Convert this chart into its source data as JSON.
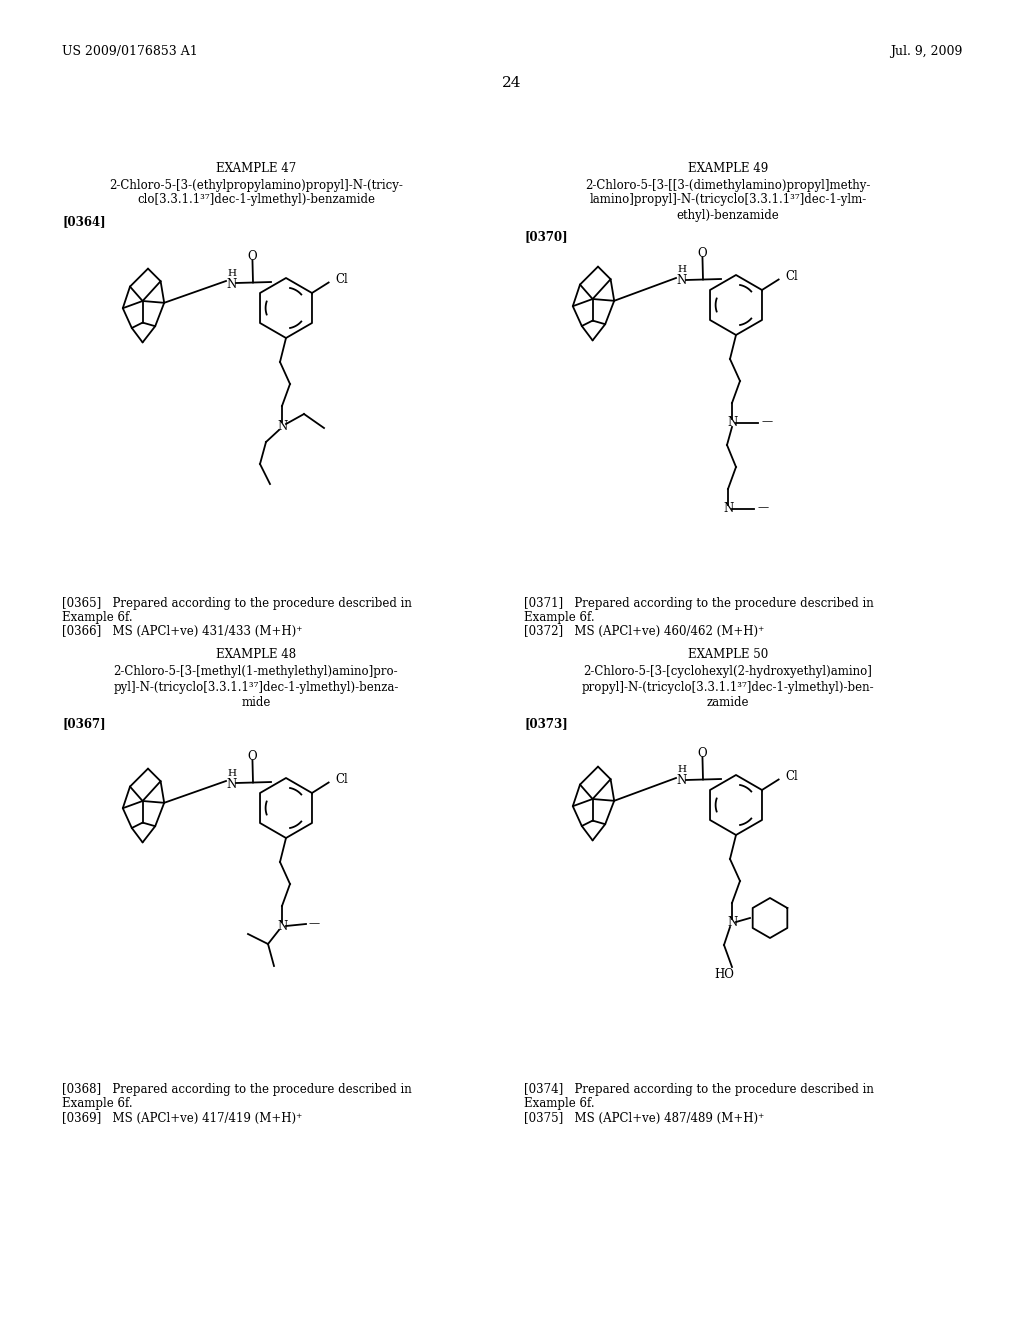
{
  "bg": "#ffffff",
  "header_left": "US 2009/0176853 A1",
  "header_right": "Jul. 9, 2009",
  "page_number": "24",
  "ex47_title1": "2-Chloro-5-[3-(ethylpropylamino)propyl]-N-(tricy-",
  "ex47_title2": "clo[3.3.1.1³⁷]dec-1-ylmethyl)-benzamide",
  "ex47_ref": "[0364]",
  "ex47_n1": "[0365]   Prepared according to the procedure described in",
  "ex47_n1b": "Example 6f.",
  "ex47_n2": "[0366]   MS (APCl+ve) 431/433 (M+H)⁺",
  "ex48_title1": "2-Chloro-5-[3-[methyl(1-methylethyl)amino]pro-",
  "ex48_title2": "pyl]-N-(tricyclo[3.3.1.1³⁷]dec-1-ylmethyl)-benza-",
  "ex48_title3": "mide",
  "ex48_ref": "[0367]",
  "ex48_n1": "[0368]   Prepared according to the procedure described in",
  "ex48_n1b": "Example 6f.",
  "ex48_n2": "[0369]   MS (APCl+ve) 417/419 (M+H)⁺",
  "ex49_title1": "2-Chloro-5-[3-[[3-(dimethylamino)propyl]methy-",
  "ex49_title2": "lamino]propyl]-N-(tricyclo[3.3.1.1³⁷]dec-1-ylm-",
  "ex49_title3": "ethyl)-benzamide",
  "ex49_ref": "[0370]",
  "ex49_n1": "[0371]   Prepared according to the procedure described in",
  "ex49_n1b": "Example 6f.",
  "ex49_n2": "[0372]   MS (APCl+ve) 460/462 (M+H)⁺",
  "ex50_title1": "2-Chloro-5-[3-[cyclohexyl(2-hydroxyethyl)amino]",
  "ex50_title2": "propyl]-N-(tricyclo[3.3.1.1³⁷]dec-1-ylmethyl)-ben-",
  "ex50_title3": "zamide",
  "ex50_ref": "[0373]",
  "ex50_n1": "[0374]   Prepared according to the procedure described in",
  "ex50_n1b": "Example 6f.",
  "ex50_n2": "[0375]   MS (APCl+ve) 487/489 (M+H)⁺"
}
